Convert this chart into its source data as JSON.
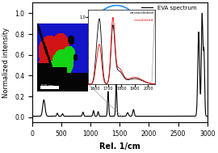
{
  "title": "",
  "xlabel": "Rel. 1/cm",
  "ylabel": "Normalized intensity",
  "xlim": [
    0,
    3000
  ],
  "ylim": [
    -0.05,
    1.1
  ],
  "legend_label": "EVA spectrum",
  "inset_legend": [
    "uncrosslinked",
    "crosslinked"
  ],
  "background_color": "#ffffff",
  "main_line_color": "#000000",
  "inset_line1_color": "#000000",
  "inset_line2_color": "#ff0000",
  "xticks": [
    0,
    500,
    1000,
    1500,
    2000,
    2500,
    3000
  ]
}
